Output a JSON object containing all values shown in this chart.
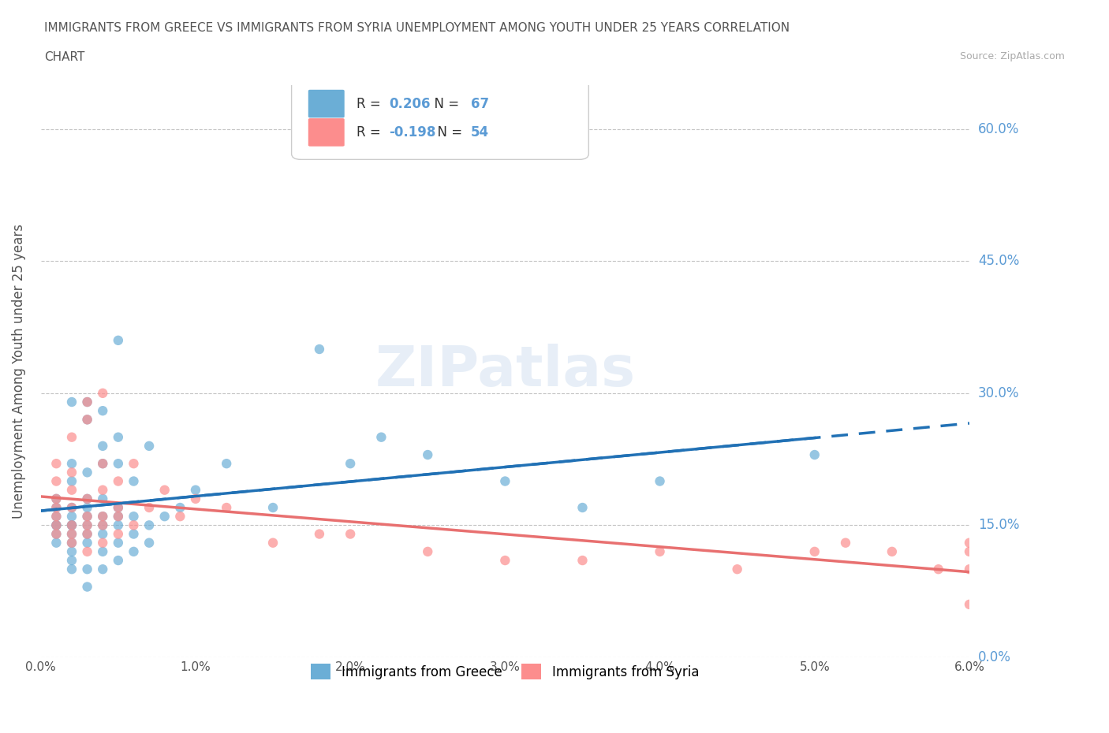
{
  "title_line1": "IMMIGRANTS FROM GREECE VS IMMIGRANTS FROM SYRIA UNEMPLOYMENT AMONG YOUTH UNDER 25 YEARS CORRELATION",
  "title_line2": "CHART",
  "source": "Source: ZipAtlas.com",
  "ylabel": "Unemployment Among Youth under 25 years",
  "xlabel_ticks": [
    "0.0%",
    "1.0%",
    "2.0%",
    "3.0%",
    "4.0%",
    "5.0%",
    "6.0%"
  ],
  "ytick_labels": [
    "0.0%",
    "15.0%",
    "30.0%",
    "45.0%",
    "60.0%"
  ],
  "ytick_values": [
    0.0,
    0.15,
    0.3,
    0.45,
    0.6
  ],
  "xtick_values": [
    0.0,
    0.01,
    0.02,
    0.03,
    0.04,
    0.05,
    0.06
  ],
  "xmin": 0.0,
  "xmax": 0.06,
  "ymin": 0.0,
  "ymax": 0.65,
  "greece_color": "#6baed6",
  "syria_color": "#fc8d8d",
  "trend_greece_color": "#2171b5",
  "trend_syria_color": "#e87070",
  "R_greece": 0.206,
  "N_greece": 67,
  "R_syria": -0.198,
  "N_syria": 54,
  "watermark": "ZIPatlas",
  "legend_greece": "Immigrants from Greece",
  "legend_syria": "Immigrants from Syria",
  "greece_x": [
    0.001,
    0.001,
    0.001,
    0.001,
    0.001,
    0.001,
    0.001,
    0.002,
    0.002,
    0.002,
    0.002,
    0.002,
    0.002,
    0.002,
    0.002,
    0.002,
    0.002,
    0.002,
    0.002,
    0.003,
    0.003,
    0.003,
    0.003,
    0.003,
    0.003,
    0.003,
    0.003,
    0.003,
    0.003,
    0.003,
    0.004,
    0.004,
    0.004,
    0.004,
    0.004,
    0.004,
    0.004,
    0.004,
    0.004,
    0.005,
    0.005,
    0.005,
    0.005,
    0.005,
    0.005,
    0.005,
    0.005,
    0.006,
    0.006,
    0.006,
    0.006,
    0.007,
    0.007,
    0.007,
    0.008,
    0.009,
    0.01,
    0.012,
    0.015,
    0.018,
    0.02,
    0.022,
    0.025,
    0.03,
    0.035,
    0.04,
    0.05
  ],
  "greece_y": [
    0.13,
    0.14,
    0.15,
    0.15,
    0.16,
    0.17,
    0.18,
    0.1,
    0.11,
    0.12,
    0.13,
    0.14,
    0.15,
    0.15,
    0.16,
    0.17,
    0.2,
    0.22,
    0.29,
    0.08,
    0.1,
    0.13,
    0.14,
    0.15,
    0.16,
    0.17,
    0.18,
    0.21,
    0.27,
    0.29,
    0.1,
    0.12,
    0.14,
    0.15,
    0.16,
    0.18,
    0.22,
    0.24,
    0.28,
    0.11,
    0.13,
    0.15,
    0.16,
    0.17,
    0.22,
    0.25,
    0.36,
    0.12,
    0.14,
    0.16,
    0.2,
    0.13,
    0.15,
    0.24,
    0.16,
    0.17,
    0.19,
    0.22,
    0.17,
    0.35,
    0.22,
    0.25,
    0.23,
    0.2,
    0.17,
    0.2,
    0.23
  ],
  "syria_x": [
    0.001,
    0.001,
    0.001,
    0.001,
    0.001,
    0.001,
    0.001,
    0.002,
    0.002,
    0.002,
    0.002,
    0.002,
    0.002,
    0.002,
    0.003,
    0.003,
    0.003,
    0.003,
    0.003,
    0.003,
    0.003,
    0.004,
    0.004,
    0.004,
    0.004,
    0.004,
    0.004,
    0.005,
    0.005,
    0.005,
    0.005,
    0.006,
    0.006,
    0.007,
    0.008,
    0.009,
    0.01,
    0.012,
    0.015,
    0.018,
    0.02,
    0.025,
    0.03,
    0.035,
    0.04,
    0.045,
    0.05,
    0.052,
    0.055,
    0.058,
    0.06,
    0.06,
    0.06,
    0.06
  ],
  "syria_y": [
    0.14,
    0.15,
    0.16,
    0.17,
    0.18,
    0.2,
    0.22,
    0.13,
    0.14,
    0.15,
    0.17,
    0.19,
    0.21,
    0.25,
    0.12,
    0.14,
    0.15,
    0.16,
    0.18,
    0.27,
    0.29,
    0.13,
    0.15,
    0.16,
    0.19,
    0.22,
    0.3,
    0.14,
    0.16,
    0.17,
    0.2,
    0.15,
    0.22,
    0.17,
    0.19,
    0.16,
    0.18,
    0.17,
    0.13,
    0.14,
    0.14,
    0.12,
    0.11,
    0.11,
    0.12,
    0.1,
    0.12,
    0.13,
    0.12,
    0.1,
    0.1,
    0.12,
    0.06,
    0.13
  ]
}
